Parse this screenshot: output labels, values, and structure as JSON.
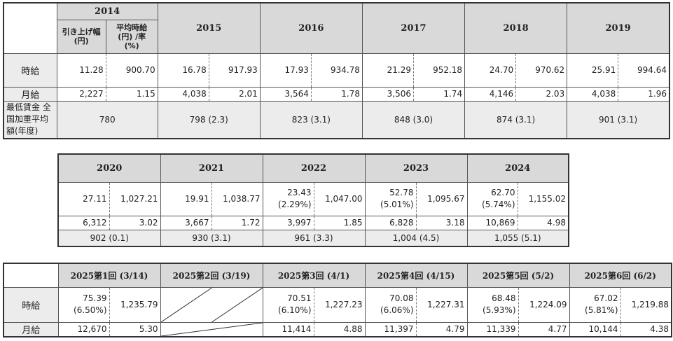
{
  "table1": {
    "years": [
      "2014",
      "2015",
      "2016",
      "2017",
      "2018",
      "2019"
    ],
    "sub_left": "引き上げ幅\n(円)",
    "sub_right": "平均時給\n(円) /率\n(%)",
    "rows": {
      "hourly_label": "時給",
      "monthly_label": "月給",
      "min_wage_label": "最低賃金 全国加重平均額(年度)"
    },
    "hourly": [
      [
        "11.28",
        "900.70"
      ],
      [
        "16.78",
        "917.93"
      ],
      [
        "17.93",
        "934.78"
      ],
      [
        "21.29",
        "952.18"
      ],
      [
        "24.70",
        "970.62"
      ],
      [
        "25.91",
        "994.64"
      ]
    ],
    "monthly": [
      [
        "2,227",
        "1.15"
      ],
      [
        "4,038",
        "2.01"
      ],
      [
        "3,564",
        "1.78"
      ],
      [
        "3,506",
        "1.74"
      ],
      [
        "4,146",
        "2.03"
      ],
      [
        "4,038",
        "1.96"
      ]
    ],
    "min_wage": [
      "780",
      "798 (2.3)",
      "823 (3.1)",
      "848 (3.0)",
      "874 (3.1)",
      "901 (3.1)"
    ]
  },
  "table2": {
    "years": [
      "2020",
      "2021",
      "2022",
      "2023",
      "2024"
    ],
    "hourly": [
      [
        "27.11",
        "",
        "1,027.21"
      ],
      [
        "19.91",
        "",
        "1,038.77"
      ],
      [
        "23.43",
        "(2.29%)",
        "1,047.00"
      ],
      [
        "52.78",
        "(5.01%)",
        "1,095.67"
      ],
      [
        "62.70",
        "(5.74%)",
        "1,155.02"
      ]
    ],
    "monthly": [
      [
        "6,312",
        "3.02"
      ],
      [
        "3,667",
        "1.72"
      ],
      [
        "3,997",
        "1.85"
      ],
      [
        "6,828",
        "3.18"
      ],
      [
        "10,869",
        "4.98"
      ]
    ],
    "min_wage": [
      "902 (0.1)",
      "930 (3.1)",
      "961 (3.3)",
      "1,004 (4.5)",
      "1,055 (5.1)"
    ]
  },
  "table3": {
    "rounds": [
      "2025第1回 (3/14)",
      "2025第2回 (3/19)",
      "2025第3回 (4/1)",
      "2025第4回 (4/15)",
      "2025第5回 (5/2)",
      "2025第6回 (6/2)"
    ],
    "hourly_label": "時給",
    "monthly_label": "月給",
    "hourly": [
      [
        "75.39",
        "(6.50%)",
        "1,235.79"
      ],
      null,
      [
        "70.51",
        "(6.10%)",
        "1,227.23"
      ],
      [
        "70.08",
        "(6.06%)",
        "1,227.31"
      ],
      [
        "68.48",
        "(5.93%)",
        "1,224.09"
      ],
      [
        "67.02",
        "(5.81%)",
        "1,219.88"
      ]
    ],
    "monthly": [
      [
        "12,670",
        "5.30"
      ],
      null,
      [
        "11,414",
        "4.88"
      ],
      [
        "11,397",
        "4.79"
      ],
      [
        "11,339",
        "4.77"
      ],
      [
        "10,144",
        "4.38"
      ]
    ]
  }
}
